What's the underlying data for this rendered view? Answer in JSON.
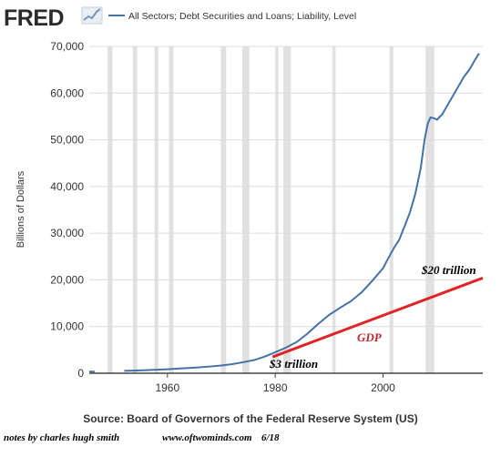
{
  "logo": {
    "text": "FRED"
  },
  "chart_data": {
    "type": "line",
    "legend": {
      "placement": "top-left",
      "entries": [
        "All Sectors; Debt Securities and Loans; Liability, Level"
      ]
    },
    "ylabel": "Billions of Dollars",
    "xlabel": "",
    "source": "Source: Board of Governors of the Federal Reserve System (US)",
    "xlim": [
      1945.5,
      2018.5
    ],
    "ylim": [
      0,
      70000
    ],
    "x_ticks": [
      1960,
      1980,
      2000
    ],
    "x_tick_labels": [
      "1960",
      "1980",
      "2000"
    ],
    "y_ticks": [
      0,
      10000,
      20000,
      30000,
      40000,
      50000,
      60000,
      70000
    ],
    "y_tick_labels": [
      "0",
      "10,000",
      "20,000",
      "30,000",
      "40,000",
      "50,000",
      "60,000",
      "70,000"
    ],
    "grid": "horizontal",
    "recessions": [
      [
        1948.9,
        1949.8
      ],
      [
        1953.6,
        1954.4
      ],
      [
        1957.6,
        1958.3
      ],
      [
        1960.3,
        1961.1
      ],
      [
        1969.9,
        1970.9
      ],
      [
        1973.9,
        1975.2
      ],
      [
        1980.0,
        1980.6
      ],
      [
        1981.5,
        1982.9
      ],
      [
        1990.6,
        1991.2
      ],
      [
        2001.2,
        2001.9
      ],
      [
        2007.9,
        2009.5
      ]
    ],
    "series": [
      {
        "name": "All Sectors; Debt Securities and Loans; Liability, Level",
        "color": "#4572a7",
        "points": [
          [
            1945.5,
            350
          ],
          [
            1946.5,
            350
          ],
          [
            1952,
            500
          ],
          [
            1955,
            620
          ],
          [
            1958,
            760
          ],
          [
            1960,
            860
          ],
          [
            1962,
            1000
          ],
          [
            1965,
            1200
          ],
          [
            1968,
            1450
          ],
          [
            1970,
            1650
          ],
          [
            1972,
            1950
          ],
          [
            1974,
            2350
          ],
          [
            1976,
            2800
          ],
          [
            1978,
            3550
          ],
          [
            1980,
            4500
          ],
          [
            1982,
            5500
          ],
          [
            1984,
            6700
          ],
          [
            1986,
            8500
          ],
          [
            1988,
            10600
          ],
          [
            1990,
            12500
          ],
          [
            1992,
            14000
          ],
          [
            1994,
            15400
          ],
          [
            1996,
            17300
          ],
          [
            1998,
            19800
          ],
          [
            2000,
            22500
          ],
          [
            2001,
            24700
          ],
          [
            2002,
            26800
          ],
          [
            2003,
            28600
          ],
          [
            2004,
            31500
          ],
          [
            2005,
            34500
          ],
          [
            2006,
            38500
          ],
          [
            2007,
            44000
          ],
          [
            2007.7,
            50000
          ],
          [
            2008.3,
            53500
          ],
          [
            2008.8,
            54800
          ],
          [
            2009.5,
            54600
          ],
          [
            2010,
            54300
          ],
          [
            2011,
            55500
          ],
          [
            2012,
            57500
          ],
          [
            2013,
            59500
          ],
          [
            2014,
            61500
          ],
          [
            2015,
            63500
          ],
          [
            2016,
            65000
          ],
          [
            2017,
            67000
          ],
          [
            2017.8,
            68500
          ]
        ]
      },
      {
        "name": "GDP",
        "color": "#e02424",
        "points": [
          [
            1979.5,
            3500
          ],
          [
            2018.5,
            20400
          ]
        ]
      }
    ],
    "annotations": [
      {
        "text": "$20 trillion",
        "color": "#000000"
      },
      {
        "text": "GDP",
        "color": "#c0282d"
      },
      {
        "text": "$3 trillion",
        "color": "#000000"
      }
    ]
  },
  "notes": {
    "author": "notes by charles hugh smith",
    "site": "www.oftwominds.com",
    "date": "6/18"
  }
}
